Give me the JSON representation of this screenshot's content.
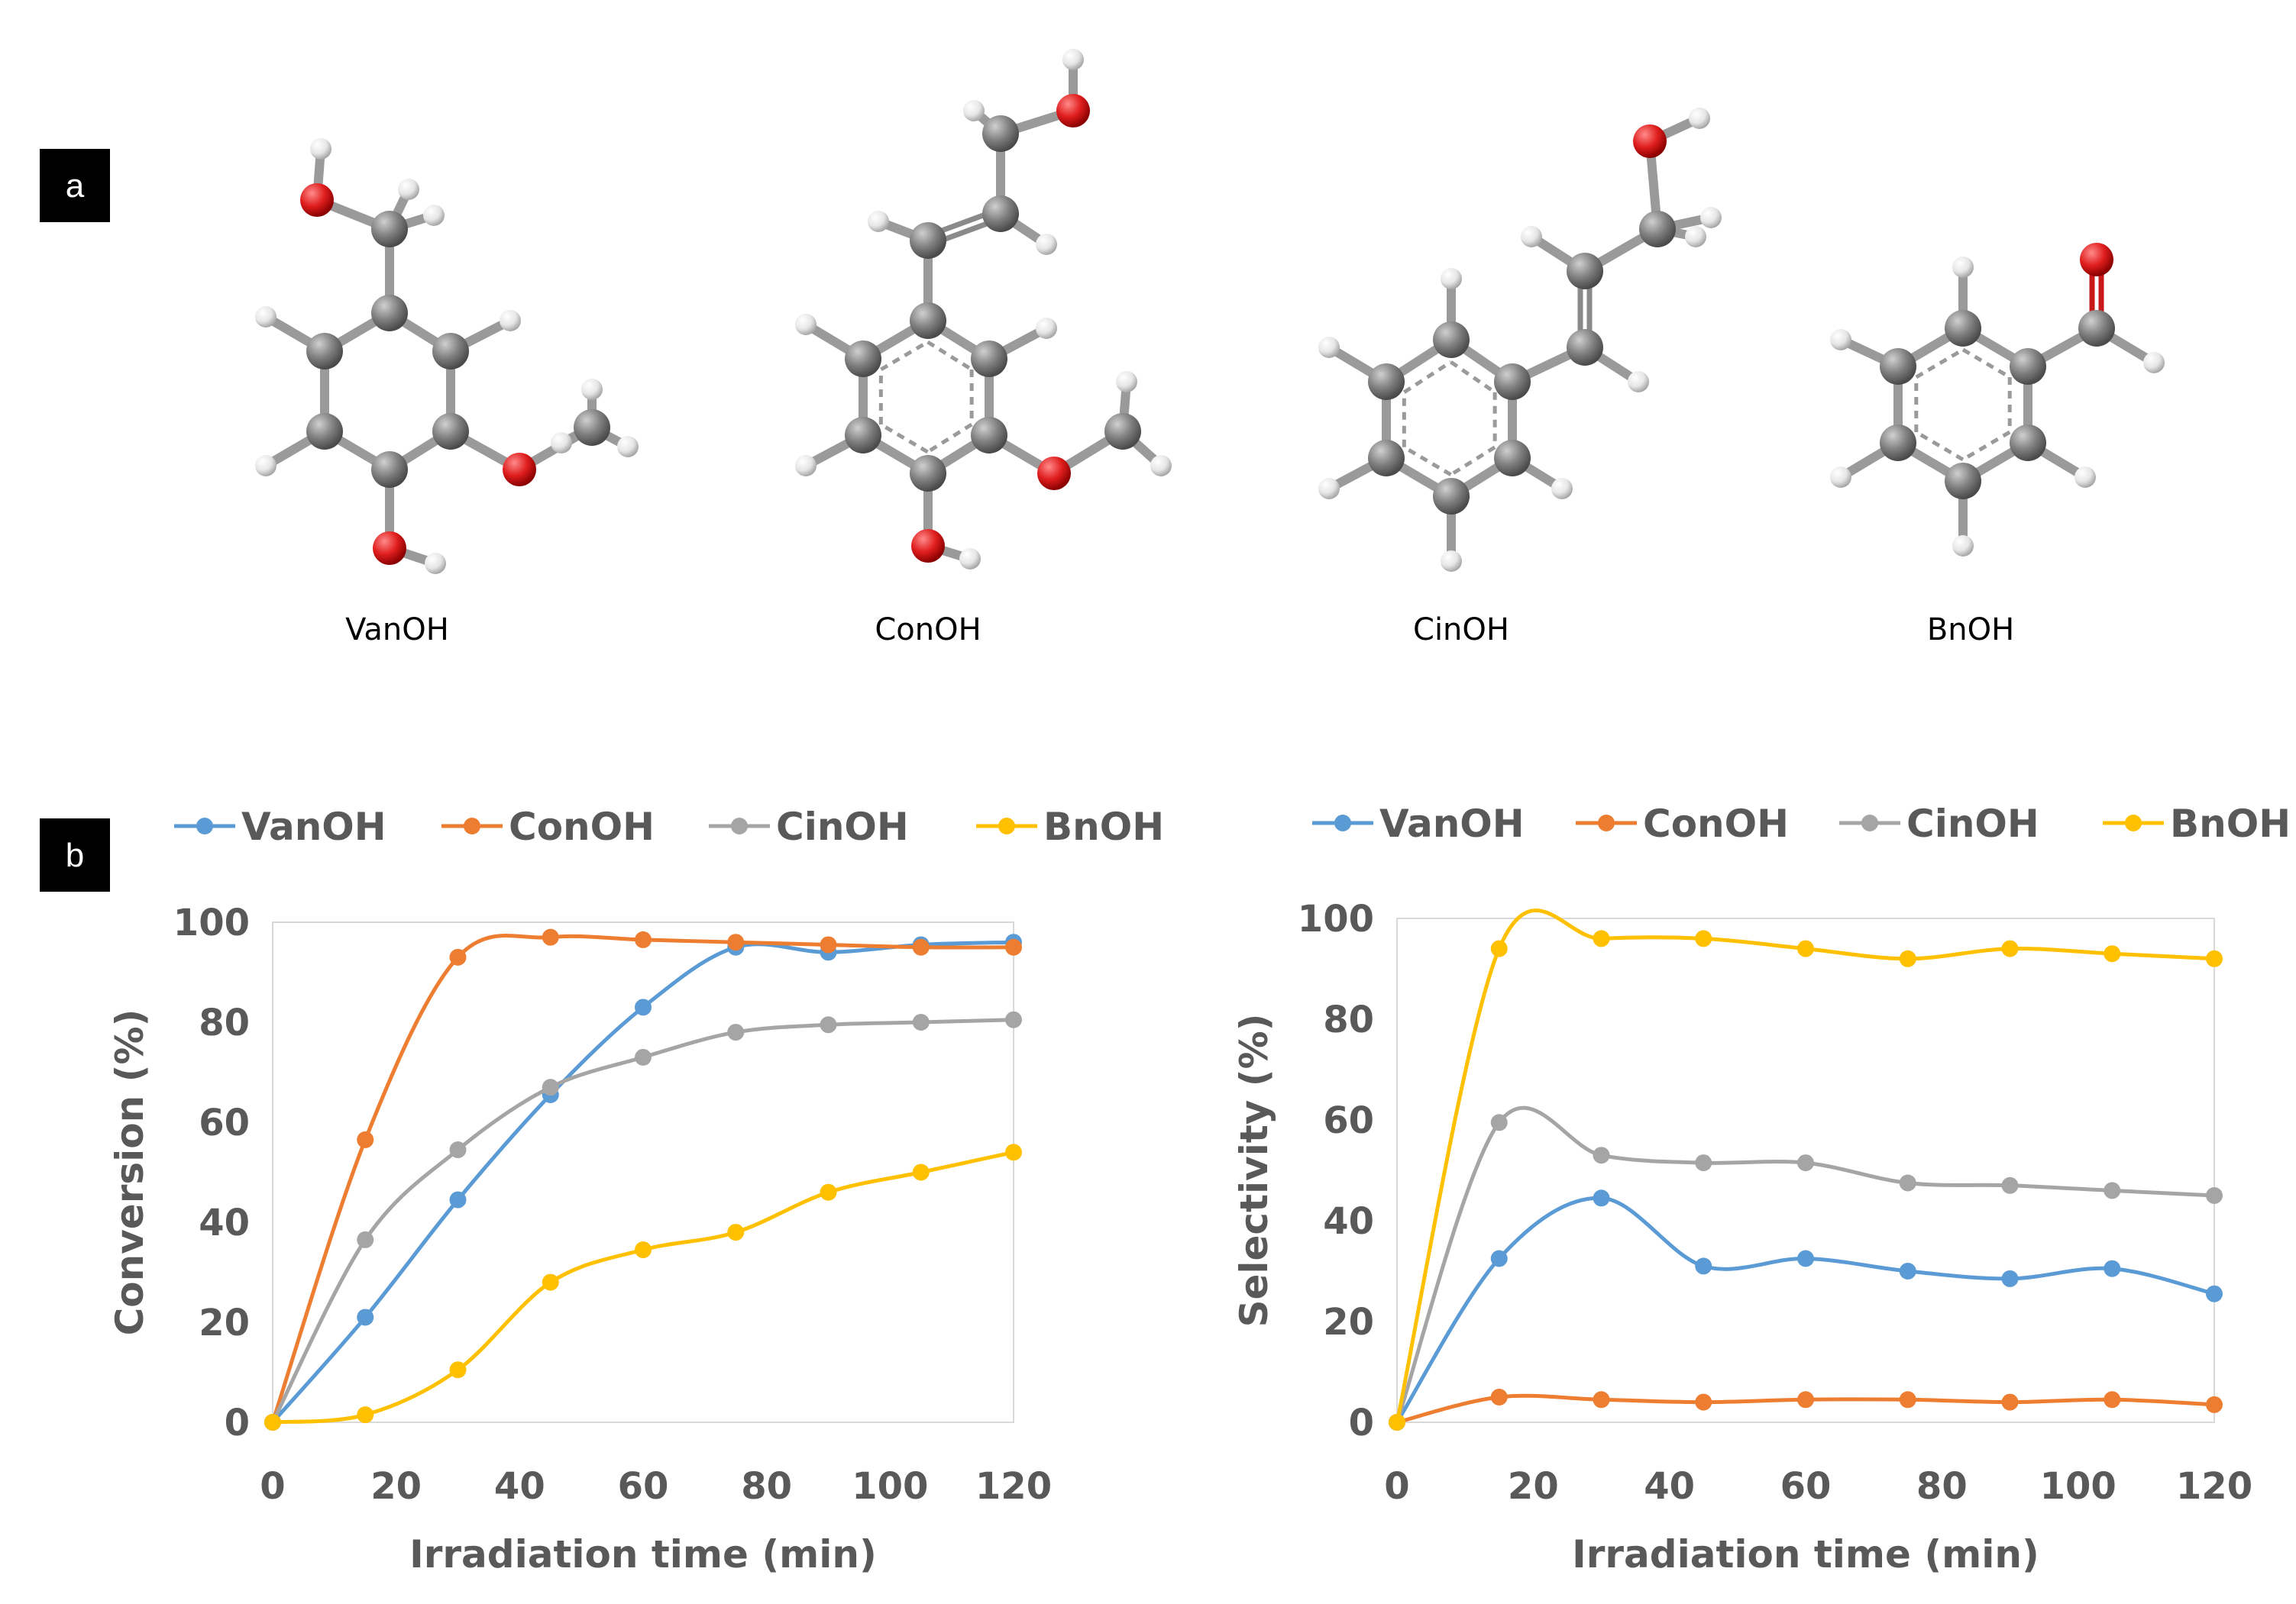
{
  "panel_labels": {
    "a": "a",
    "b": "b"
  },
  "molecules": [
    {
      "name": "VanOH"
    },
    {
      "name": "ConOH"
    },
    {
      "name": "CinOH"
    },
    {
      "name": "BnOH"
    }
  ],
  "colors": {
    "VanOH": "#5b9bd5",
    "ConOH": "#ed7d31",
    "CinOH": "#a5a5a5",
    "BnOH": "#ffc000",
    "carbon": "#7f7f7f",
    "oxygen": "#e01e1e",
    "hydrogen": "#e8e8e8"
  },
  "chart_data": [
    {
      "type": "line",
      "id": "conversion",
      "title": "",
      "xlabel": "Irradiation time (min)",
      "ylabel": "Conversion (%)",
      "xlim": [
        0,
        120
      ],
      "ylim": [
        0,
        100
      ],
      "xticks": [
        0,
        20,
        40,
        60,
        80,
        100,
        120
      ],
      "yticks": [
        0,
        20,
        40,
        60,
        80,
        100
      ],
      "legend_position": "top",
      "x": [
        0,
        15,
        30,
        45,
        60,
        75,
        90,
        105,
        120
      ],
      "series": [
        {
          "name": "VanOH",
          "values": [
            0,
            21,
            44.5,
            65.5,
            83,
            95,
            94,
            95.5,
            96
          ]
        },
        {
          "name": "ConOH",
          "values": [
            0,
            56.5,
            93,
            97,
            96.5,
            96,
            95.5,
            95,
            95
          ]
        },
        {
          "name": "CinOH",
          "values": [
            0,
            36.5,
            54.5,
            67,
            73,
            78,
            79.5,
            80,
            80.5
          ]
        },
        {
          "name": "BnOH",
          "values": [
            0,
            1.5,
            10.5,
            28,
            34.5,
            38,
            46,
            50,
            54
          ]
        }
      ]
    },
    {
      "type": "line",
      "id": "selectivity",
      "title": "",
      "xlabel": "Irradiation time (min)",
      "ylabel": "Selectivity (%)",
      "xlim": [
        0,
        120
      ],
      "ylim": [
        0,
        100
      ],
      "xticks": [
        0,
        20,
        40,
        60,
        80,
        100,
        120
      ],
      "yticks": [
        0,
        20,
        40,
        60,
        80,
        100
      ],
      "legend_position": "top",
      "x": [
        0,
        15,
        30,
        45,
        60,
        75,
        90,
        105,
        120
      ],
      "series": [
        {
          "name": "VanOH",
          "values": [
            0,
            32.5,
            44.5,
            31,
            32.5,
            30,
            28.5,
            30.5,
            25.5
          ]
        },
        {
          "name": "ConOH",
          "values": [
            0,
            5,
            4.5,
            4,
            4.5,
            4.5,
            4,
            4.5,
            3.5
          ]
        },
        {
          "name": "CinOH",
          "values": [
            0,
            59.5,
            53,
            51.5,
            51.5,
            47.5,
            47,
            46,
            45
          ]
        },
        {
          "name": "BnOH",
          "values": [
            0,
            94,
            96,
            96,
            94,
            92,
            94,
            93,
            92
          ]
        }
      ]
    }
  ]
}
